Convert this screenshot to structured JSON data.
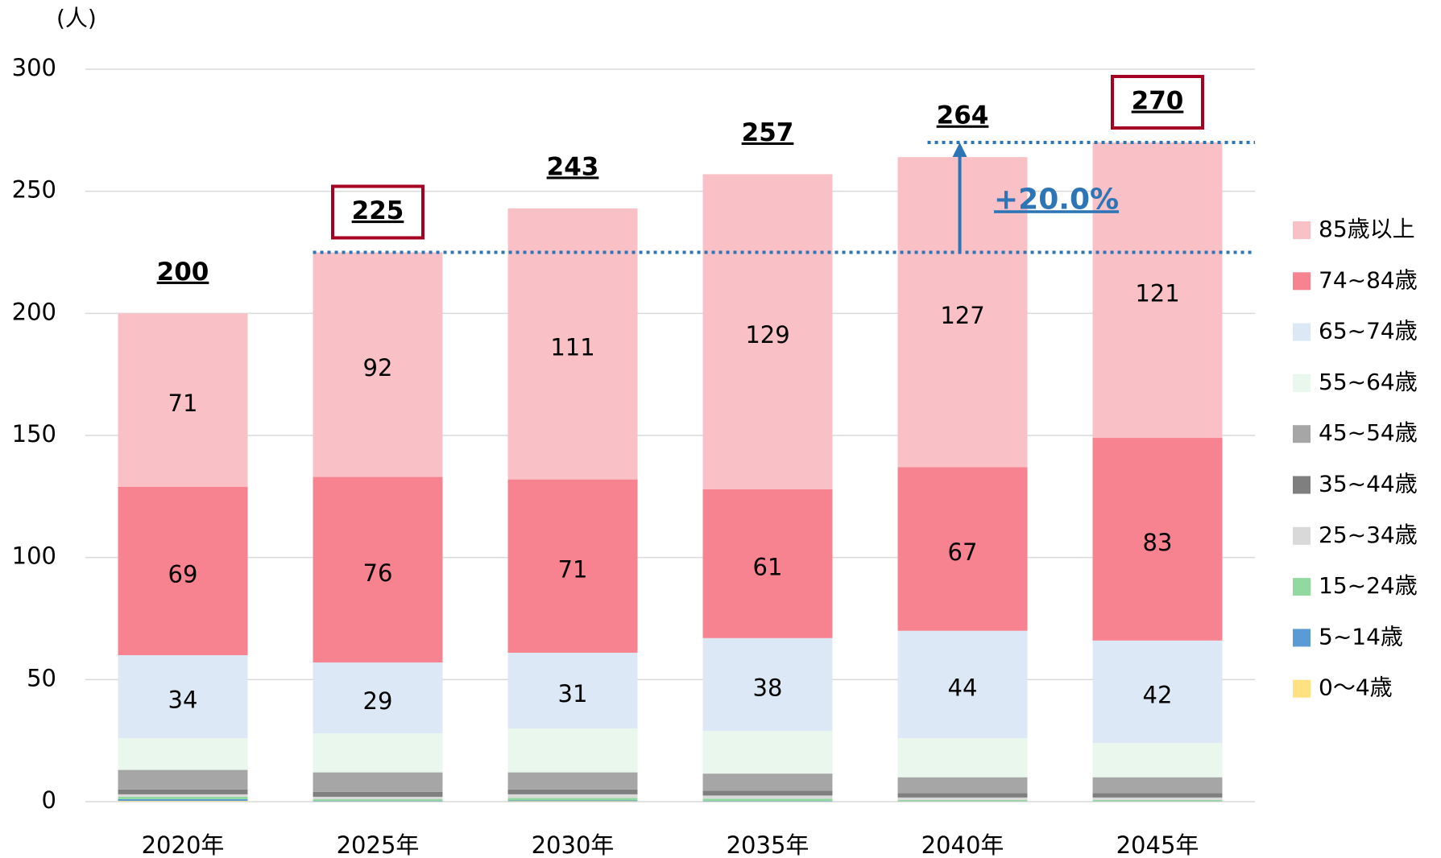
{
  "chart_data": {
    "type": "stacked_bar",
    "y_unit": "(人)",
    "categories": [
      "2020年",
      "2025年",
      "2030年",
      "2035年",
      "2040年",
      "2045年"
    ],
    "series": [
      {
        "name": "0～4歳",
        "color": "#ffe182",
        "values": [
          0.3,
          0.1,
          0.2,
          0.1,
          0.1,
          0.1
        ]
      },
      {
        "name": "5~14歳",
        "color": "#5b9bd5",
        "values": [
          0.7,
          0.2,
          0.3,
          0.2,
          0.1,
          0.1
        ]
      },
      {
        "name": "15~24歳",
        "color": "#92d9a0",
        "values": [
          1,
          0.7,
          1,
          0.9,
          0.5,
          0.5
        ]
      },
      {
        "name": "25~34歳",
        "color": "#d9d9d9",
        "values": [
          1,
          1,
          1.5,
          1.3,
          1,
          1
        ]
      },
      {
        "name": "35~44歳",
        "color": "#7f7f7f",
        "values": [
          2,
          2,
          2,
          2,
          1.8,
          1.8
        ]
      },
      {
        "name": "45~54歳",
        "color": "#a6a6a6",
        "values": [
          8,
          8,
          7,
          7,
          6.5,
          6.5
        ]
      },
      {
        "name": "55~64歳",
        "color": "#e9f7ec",
        "values": [
          13,
          16,
          18,
          17.5,
          16,
          14
        ]
      },
      {
        "name": "65~74歳",
        "color": "#dce8f6",
        "values": [
          34,
          29,
          31,
          38,
          44,
          42
        ],
        "data_labels": true
      },
      {
        "name": "74~84歳",
        "color": "#f6838f",
        "values": [
          69,
          76,
          71,
          61,
          67,
          83
        ],
        "data_labels": true
      },
      {
        "name": "85歳以上",
        "color": "#f9c0c6",
        "values": [
          71,
          92,
          111,
          129,
          127,
          121
        ],
        "data_labels": true
      }
    ],
    "totals": [
      200,
      225,
      243,
      257,
      264,
      270
    ],
    "annotation": {
      "text": "+20.0%",
      "from": 225,
      "to": 270
    },
    "ylim": [
      0,
      300
    ],
    "yticks": [
      0,
      50,
      100,
      150,
      200,
      250,
      300
    ],
    "grid": true
  }
}
